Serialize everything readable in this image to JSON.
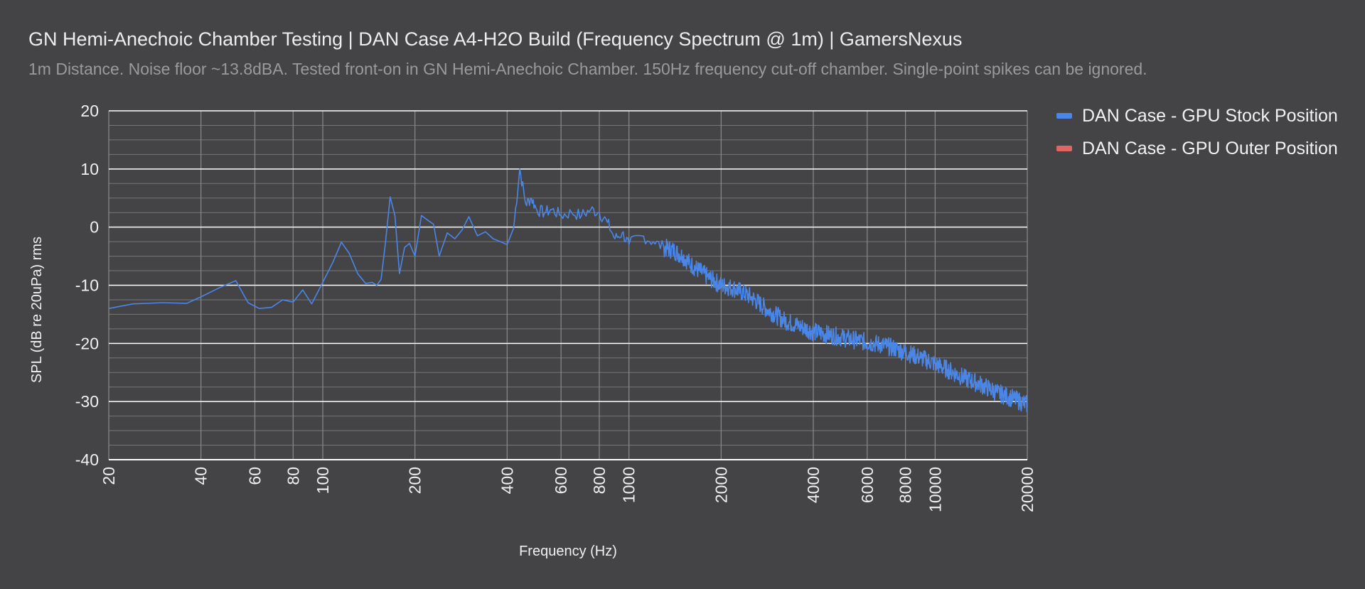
{
  "colors": {
    "background": "#444446",
    "major_grid": "#ffffff",
    "minor_grid": "#777779",
    "series_stock": "#4a86e8",
    "series_outer": "#e06666"
  },
  "chart_data": {
    "type": "line",
    "title": "GN Hemi-Anechoic Chamber Testing | DAN Case A4-H2O Build (Frequency Spectrum @ 1m) | GamersNexus",
    "subtitle": "1m Distance. Noise floor ~13.8dBA. Tested front-on in GN Hemi-Anechoic Chamber. 150Hz frequency cut-off chamber. Single-point spikes can be ignored.",
    "xlabel": "Frequency (Hz)",
    "ylabel": "SPL (dB re 20uPa) rms",
    "x_scale": "log",
    "xlim": [
      20,
      20000
    ],
    "ylim": [
      -40,
      20
    ],
    "x_ticks": [
      20,
      40,
      60,
      80,
      100,
      200,
      400,
      600,
      800,
      1000,
      2000,
      4000,
      6000,
      8000,
      10000,
      20000
    ],
    "x_tick_labels": [
      "20",
      "40",
      "60",
      "80",
      "100",
      "200",
      "400",
      "600",
      "800",
      "1000",
      "2000",
      "4000",
      "6000",
      "8000",
      "10000",
      "20000"
    ],
    "y_ticks": [
      -40,
      -30,
      -20,
      -10,
      0,
      10,
      20
    ],
    "y_tick_labels": [
      "-40",
      "-30",
      "-20",
      "-10",
      "0",
      "10",
      "20"
    ],
    "grid": true,
    "legend_position": "right",
    "series": [
      {
        "name": "DAN Case - GPU Stock Position",
        "color": "#4a86e8",
        "x": [
          20,
          24,
          30,
          36,
          40,
          46,
          52,
          57,
          62,
          68,
          74,
          80,
          86,
          92,
          100,
          108,
          115,
          122,
          130,
          138,
          145,
          150,
          155,
          160,
          166,
          172,
          178,
          185,
          192,
          200,
          210,
          220,
          230,
          240,
          255,
          270,
          285,
          300,
          320,
          340,
          360,
          380,
          400,
          420,
          440,
          460,
          480,
          500,
          530,
          560,
          600,
          650,
          700,
          750,
          800,
          850,
          900,
          950,
          1000,
          1100,
          1200,
          1300,
          1400,
          1500,
          1600,
          1800,
          2000,
          2200,
          2500,
          2800,
          3200,
          3600,
          4000,
          4500,
          5000,
          5600,
          6300,
          7000,
          8000,
          9000,
          10000,
          11000,
          12500,
          14000,
          16000,
          18000,
          20000
        ],
        "values": [
          -14,
          -13.2,
          -13,
          -13.1,
          -12,
          -10.4,
          -9.2,
          -13,
          -14,
          -13.8,
          -12.5,
          -12.9,
          -10.8,
          -13.2,
          -9.5,
          -6,
          -2.6,
          -4.5,
          -8,
          -9.7,
          -9.5,
          -10,
          -9,
          -3,
          5.2,
          2,
          -8,
          -3.5,
          -2.8,
          -5,
          2,
          1.2,
          0.5,
          -5,
          -1,
          -2,
          -0.5,
          1.8,
          -1.5,
          -0.8,
          -2,
          -2.5,
          -3,
          -0.2,
          10,
          4,
          5,
          3,
          2.5,
          3,
          2,
          2.5,
          2,
          3,
          2.5,
          0.8,
          -2,
          -1,
          -3,
          -1.5,
          -2.5,
          -3.5,
          -4,
          -5,
          -6.5,
          -8.5,
          -10,
          -10.5,
          -12,
          -14,
          -16,
          -17,
          -18,
          -18.5,
          -19,
          -19.5,
          -20,
          -20.5,
          -21.5,
          -22.5,
          -23.5,
          -24.5,
          -26,
          -27,
          -28.5,
          -29.5,
          -30.5
        ]
      },
      {
        "name": "DAN Case - GPU Outer Position",
        "color": "#e06666",
        "x": [],
        "values": []
      }
    ]
  }
}
